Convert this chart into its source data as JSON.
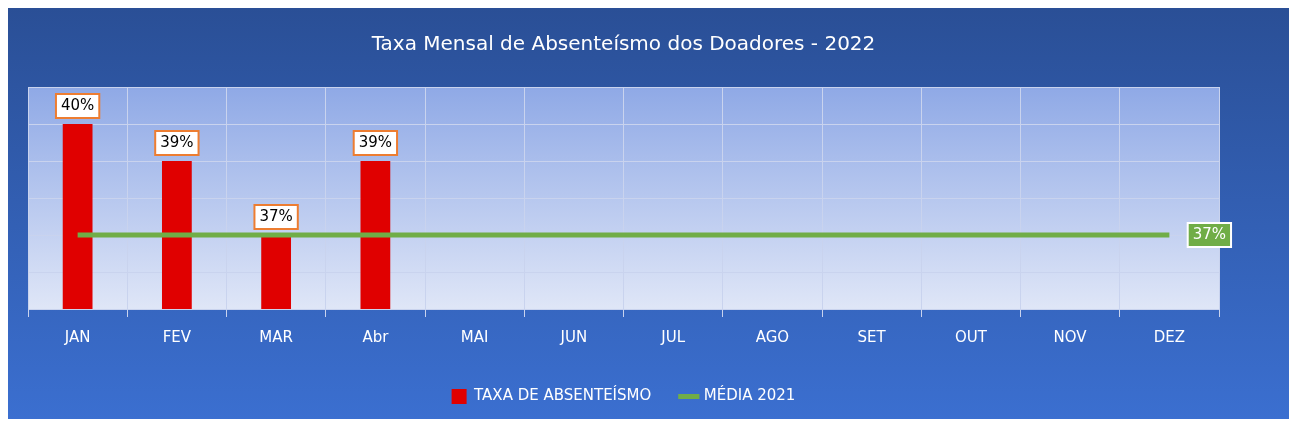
{
  "chart_data": {
    "type": "bar",
    "title": "Taxa Mensal de Absenteísmo dos Doadores - 2022",
    "categories": [
      "JAN",
      "FEV",
      "MAR",
      "Abr",
      "MAI",
      "JUN",
      "JUL",
      "AGO",
      "SET",
      "OUT",
      "NOV",
      "DEZ"
    ],
    "series": [
      {
        "name": "TAXA DE ABSENTEÍSMO",
        "color": "#e00000",
        "values": [
          40,
          39,
          37,
          39,
          null,
          null,
          null,
          null,
          null,
          null,
          null,
          null
        ],
        "value_labels": [
          "40%",
          "39%",
          "37%",
          "39%",
          null,
          null,
          null,
          null,
          null,
          null,
          null,
          null
        ]
      },
      {
        "name": "MÉDIA 2021",
        "type": "line",
        "color": "#70ad47",
        "values": [
          37,
          37,
          37,
          37,
          37,
          37,
          37,
          37,
          37,
          37,
          37,
          37
        ],
        "value_labels": [
          null,
          null,
          null,
          null,
          null,
          null,
          null,
          null,
          null,
          null,
          null,
          "37%"
        ]
      }
    ],
    "ylim": [
      35,
      41
    ],
    "tick_labels": "x",
    "grid": true,
    "legend": "bottom",
    "marker": "none",
    "line_style": "solid"
  }
}
